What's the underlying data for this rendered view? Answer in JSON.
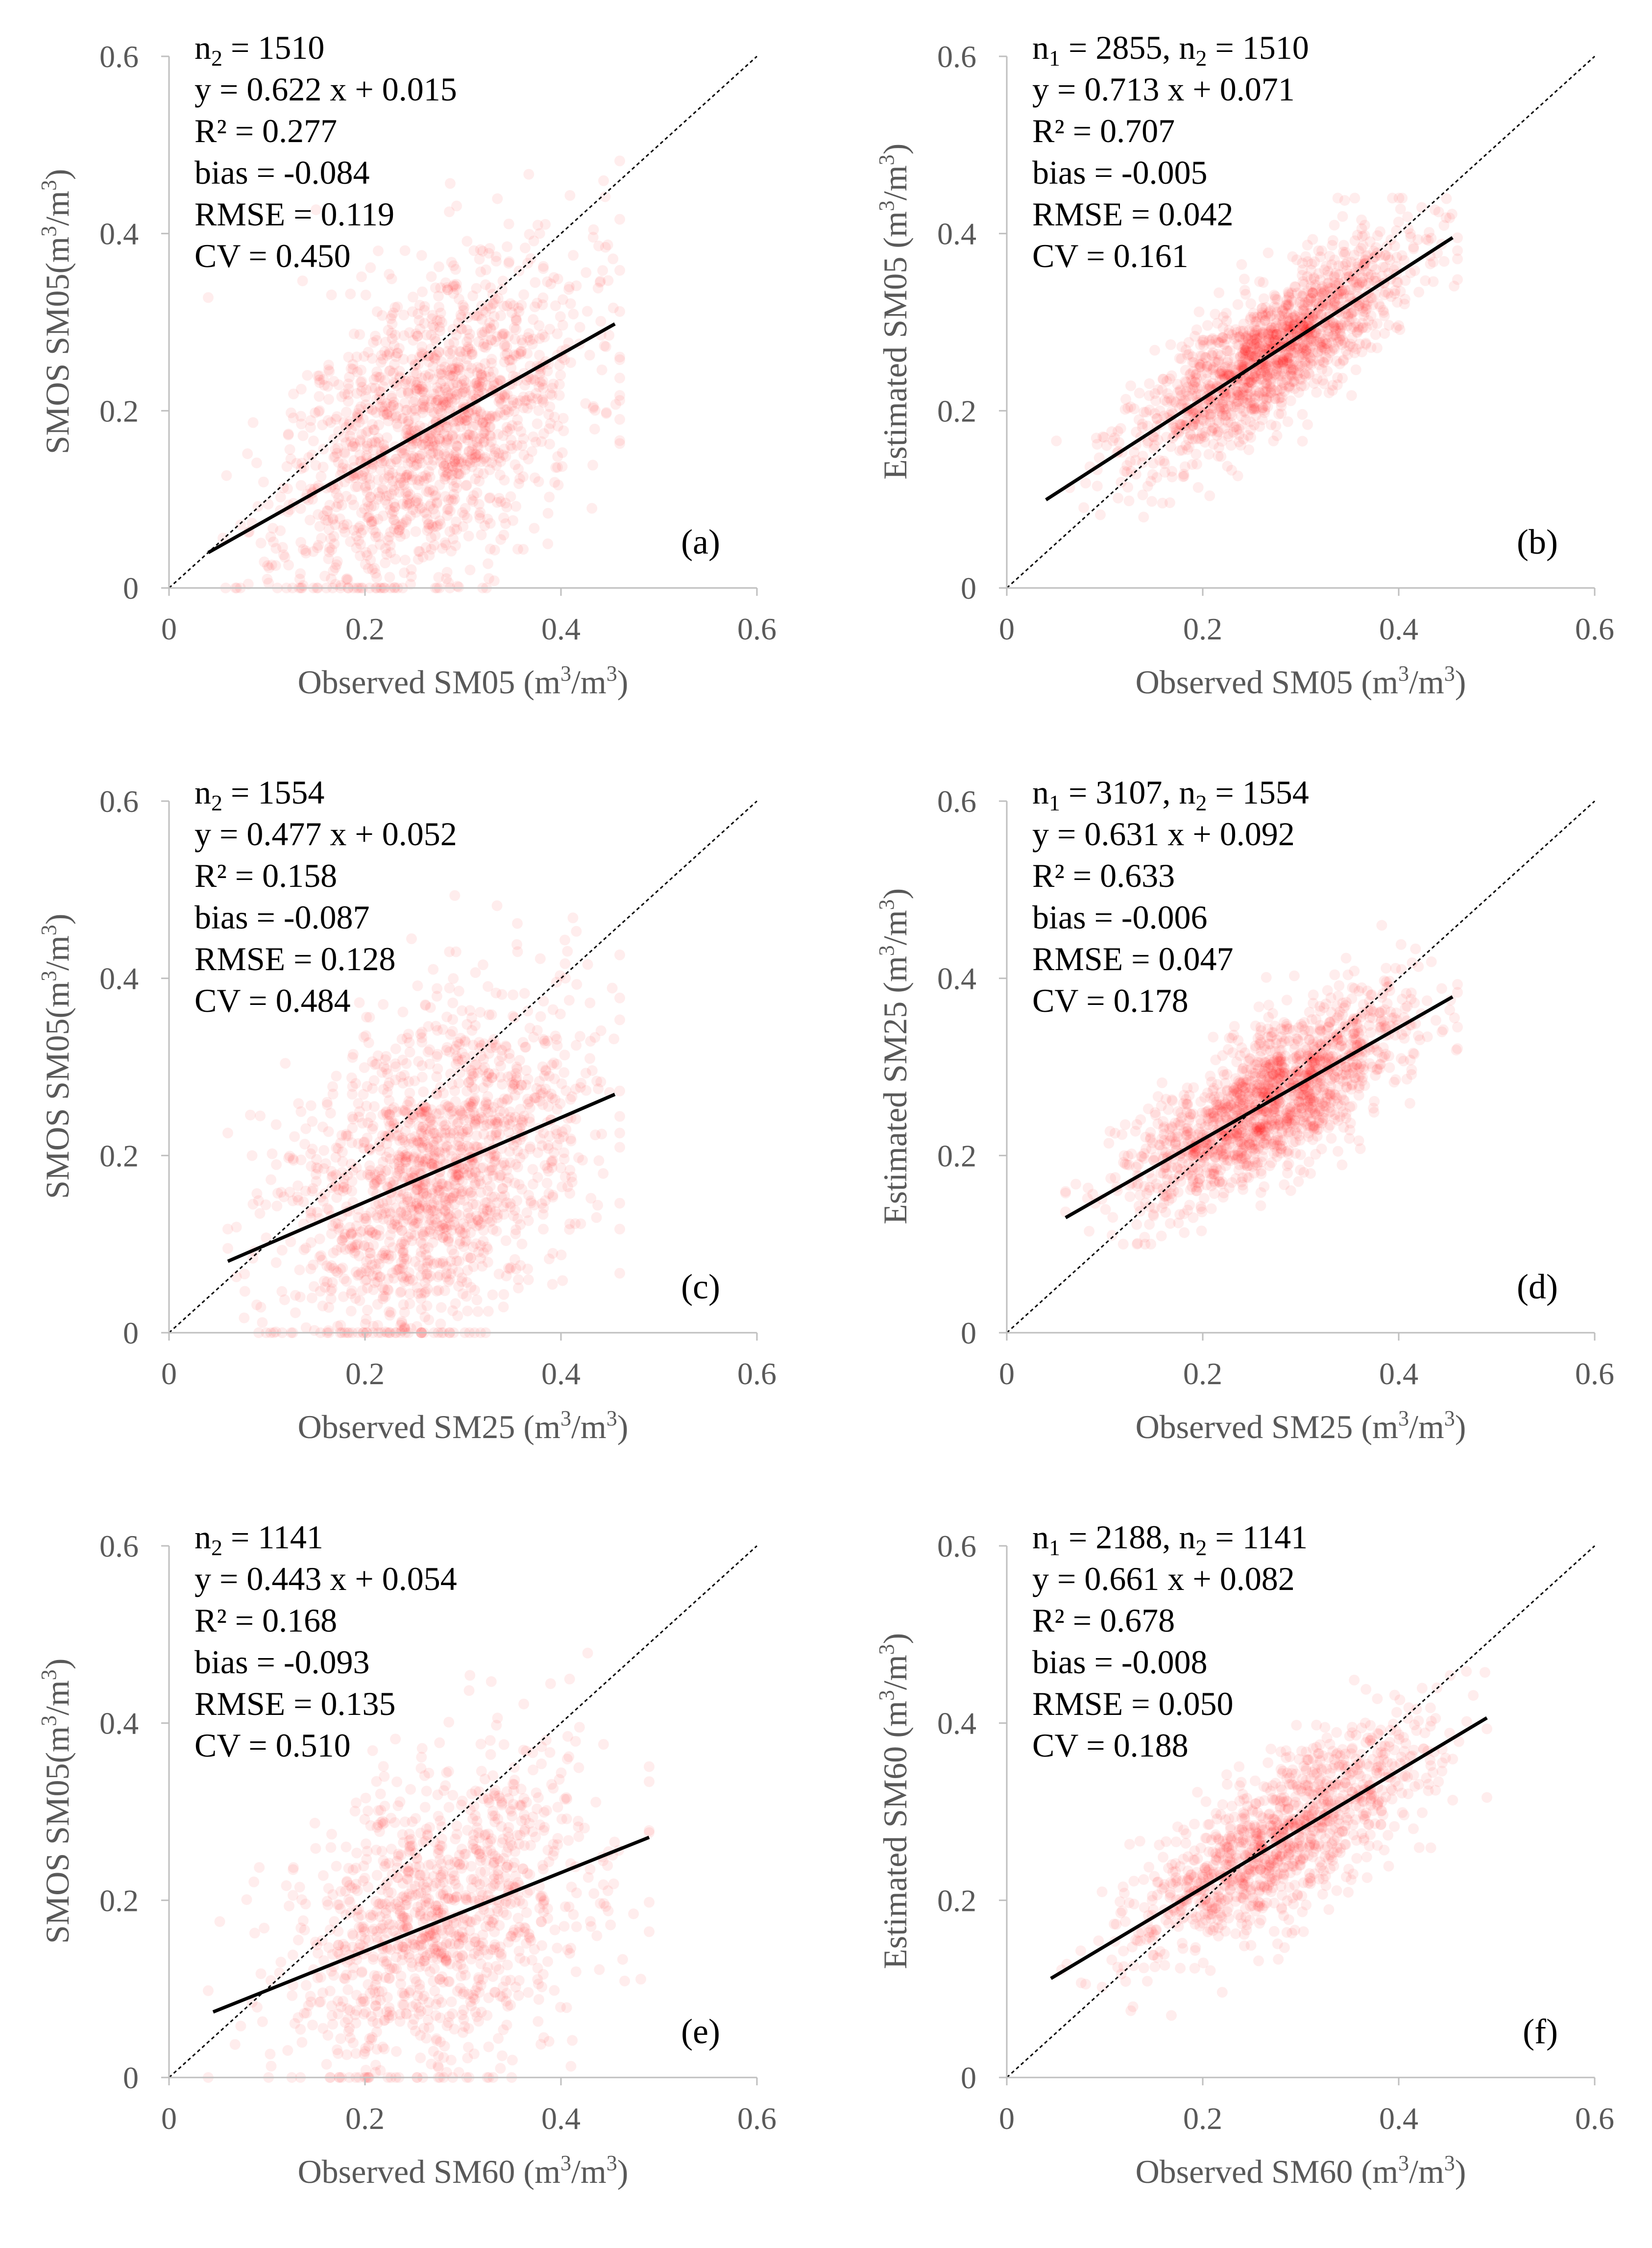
{
  "figure": {
    "background": "#ffffff",
    "point_color": "#ff0000",
    "regression_color": "#000000",
    "axis_color": "#bfbfbf",
    "text_color": "#595959"
  },
  "chart_data": [
    {
      "type": "scatter",
      "panel_label": "(a)",
      "xlabel": {
        "pre": "Observed SM05 (m",
        "mid": "/m",
        "post": ")",
        "sup": "3"
      },
      "ylabel": {
        "pre": "SMOS SM05(m",
        "mid": "/m",
        "post": ")",
        "sup": "3"
      },
      "xlim": [
        0,
        0.6
      ],
      "ylim": [
        0,
        0.6
      ],
      "xticks": [
        "0",
        "0.2",
        "0.4",
        "0.6"
      ],
      "yticks": [
        "0",
        "0.2",
        "0.4",
        "0.6"
      ],
      "stats": [
        {
          "prefix": "n",
          "sub": "2",
          "suffix": " = 1510"
        },
        {
          "prefix": "y = 0.622 x + 0.015"
        },
        {
          "prefix": "R² = 0.277"
        },
        {
          "prefix": "bias = -0.084"
        },
        {
          "prefix": "RMSE = 0.119"
        },
        {
          "prefix": "CV = 0.450"
        }
      ],
      "regression": {
        "slope": 0.622,
        "intercept": 0.015,
        "x_range": [
          0.04,
          0.455
        ]
      },
      "one_to_one_line": true,
      "scatter": {
        "n": 1510,
        "x_mean": 0.27,
        "x_sd": 0.075,
        "x_range": [
          0.04,
          0.46
        ],
        "residual_sd": 0.085,
        "y_range": [
          0,
          0.55
        ],
        "seed": 11
      }
    },
    {
      "type": "scatter",
      "panel_label": "(b)",
      "xlabel": {
        "pre": "Observed SM05 (m",
        "mid": "/m",
        "post": ")",
        "sup": "3"
      },
      "ylabel": {
        "pre": "Estimated SM05 (m",
        "mid": "/m",
        "post": ")",
        "sup": "3"
      },
      "xlim": [
        0,
        0.6
      ],
      "ylim": [
        0,
        0.6
      ],
      "xticks": [
        "0",
        "0.2",
        "0.4",
        "0.6"
      ],
      "yticks": [
        "0",
        "0.2",
        "0.4",
        "0.6"
      ],
      "stats": [
        {
          "prefix": "n",
          "sub": "1",
          "suffix": " = 2855, "
        },
        {
          "prefix": "y = 0.713 x + 0.071"
        },
        {
          "prefix": "R² = 0.707"
        },
        {
          "prefix": "bias = -0.005"
        },
        {
          "prefix": "RMSE = 0.042"
        },
        {
          "prefix": "CV = 0.161"
        }
      ],
      "stats_extra": {
        "prefix": "n",
        "sub": "2",
        "suffix": " = 1510"
      },
      "regression": {
        "slope": 0.713,
        "intercept": 0.071,
        "x_range": [
          0.04,
          0.455
        ]
      },
      "one_to_one_line": true,
      "scatter": {
        "n": 1510,
        "x_mean": 0.27,
        "x_sd": 0.07,
        "x_range": [
          0.04,
          0.46
        ],
        "residual_sd": 0.038,
        "y_range": [
          0.08,
          0.44
        ],
        "seed": 23
      }
    },
    {
      "type": "scatter",
      "panel_label": "(c)",
      "xlabel": {
        "pre": "Observed SM25 (m",
        "mid": "/m",
        "post": ")",
        "sup": "3"
      },
      "ylabel": {
        "pre": "SMOS SM05(m",
        "mid": "/m",
        "post": ")",
        "sup": "3"
      },
      "xlim": [
        0,
        0.6
      ],
      "ylim": [
        0,
        0.6
      ],
      "xticks": [
        "0",
        "0.2",
        "0.4",
        "0.6"
      ],
      "yticks": [
        "0",
        "0.2",
        "0.4",
        "0.6"
      ],
      "stats": [
        {
          "prefix": "n",
          "sub": "2",
          "suffix": " = 1554"
        },
        {
          "prefix": "y = 0.477 x + 0.052"
        },
        {
          "prefix": "R² = 0.158"
        },
        {
          "prefix": "bias = -0.087"
        },
        {
          "prefix": "RMSE = 0.128"
        },
        {
          "prefix": "CV = 0.484"
        }
      ],
      "regression": {
        "slope": 0.477,
        "intercept": 0.052,
        "x_range": [
          0.06,
          0.455
        ]
      },
      "one_to_one_line": true,
      "scatter": {
        "n": 1554,
        "x_mean": 0.27,
        "x_sd": 0.075,
        "x_range": [
          0.06,
          0.46
        ],
        "residual_sd": 0.09,
        "y_range": [
          0,
          0.55
        ],
        "seed": 37
      }
    },
    {
      "type": "scatter",
      "panel_label": "(d)",
      "xlabel": {
        "pre": "Observed SM25 (m",
        "mid": "/m",
        "post": ")",
        "sup": "3"
      },
      "ylabel": {
        "pre": "Estimated SM25 (m",
        "mid": "/m",
        "post": ")",
        "sup": "3"
      },
      "xlim": [
        0,
        0.6
      ],
      "ylim": [
        0,
        0.6
      ],
      "xticks": [
        "0",
        "0.2",
        "0.4",
        "0.6"
      ],
      "yticks": [
        "0",
        "0.2",
        "0.4",
        "0.6"
      ],
      "stats": [
        {
          "prefix": "n",
          "sub": "1",
          "suffix": " = 3107, "
        },
        {
          "prefix": "y = 0.631 x + 0.092"
        },
        {
          "prefix": "R² = 0.633"
        },
        {
          "prefix": "bias = -0.006"
        },
        {
          "prefix": "RMSE = 0.047"
        },
        {
          "prefix": "CV = 0.178"
        }
      ],
      "stats_extra": {
        "prefix": "n",
        "sub": "2",
        "suffix": " = 1554"
      },
      "regression": {
        "slope": 0.631,
        "intercept": 0.092,
        "x_range": [
          0.06,
          0.455
        ]
      },
      "one_to_one_line": true,
      "scatter": {
        "n": 1554,
        "x_mean": 0.27,
        "x_sd": 0.07,
        "x_range": [
          0.06,
          0.46
        ],
        "residual_sd": 0.04,
        "y_range": [
          0.1,
          0.47
        ],
        "seed": 41
      }
    },
    {
      "type": "scatter",
      "panel_label": "(e)",
      "xlabel": {
        "pre": "Observed SM60 (m",
        "mid": "/m",
        "post": ")",
        "sup": "3"
      },
      "ylabel": {
        "pre": "SMOS SM05(m",
        "mid": "/m",
        "post": ")",
        "sup": "3"
      },
      "xlim": [
        0,
        0.6
      ],
      "ylim": [
        0,
        0.6
      ],
      "xticks": [
        "0",
        "0.2",
        "0.4",
        "0.6"
      ],
      "yticks": [
        "0",
        "0.2",
        "0.4",
        "0.6"
      ],
      "stats": [
        {
          "prefix": "n",
          "sub": "2",
          "suffix": " = 1141"
        },
        {
          "prefix": "y = 0.443 x + 0.054"
        },
        {
          "prefix": "R² = 0.168"
        },
        {
          "prefix": "bias = -0.093"
        },
        {
          "prefix": "RMSE = 0.135"
        },
        {
          "prefix": "CV = 0.510"
        }
      ],
      "regression": {
        "slope": 0.443,
        "intercept": 0.054,
        "x_range": [
          0.045,
          0.49
        ]
      },
      "one_to_one_line": true,
      "scatter": {
        "n": 1141,
        "x_mean": 0.28,
        "x_sd": 0.08,
        "x_range": [
          0.04,
          0.49
        ],
        "residual_sd": 0.09,
        "y_range": [
          0,
          0.55
        ],
        "seed": 53
      }
    },
    {
      "type": "scatter",
      "panel_label": "(f)",
      "xlabel": {
        "pre": "Observed SM60 (m",
        "mid": "/m",
        "post": ")",
        "sup": "3"
      },
      "ylabel": {
        "pre": "Estimated SM60 (m",
        "mid": "/m",
        "post": ")",
        "sup": "3"
      },
      "xlim": [
        0,
        0.6
      ],
      "ylim": [
        0,
        0.6
      ],
      "xticks": [
        "0",
        "0.2",
        "0.4",
        "0.6"
      ],
      "yticks": [
        "0",
        "0.2",
        "0.4",
        "0.6"
      ],
      "stats": [
        {
          "prefix": "n",
          "sub": "1",
          "suffix": " = 2188, "
        },
        {
          "prefix": "y = 0.661 x + 0.082"
        },
        {
          "prefix": "R² = 0.678"
        },
        {
          "prefix": "bias = -0.008"
        },
        {
          "prefix": "RMSE = 0.050"
        },
        {
          "prefix": "CV = 0.188"
        }
      ],
      "stats_extra": {
        "prefix": "n",
        "sub": "2",
        "suffix": " = 1141"
      },
      "regression": {
        "slope": 0.661,
        "intercept": 0.082,
        "x_range": [
          0.045,
          0.49
        ]
      },
      "one_to_one_line": true,
      "scatter": {
        "n": 1141,
        "x_mean": 0.28,
        "x_sd": 0.075,
        "x_range": [
          0.04,
          0.49
        ],
        "residual_sd": 0.042,
        "y_range": [
          0.07,
          0.5
        ],
        "seed": 67
      }
    }
  ]
}
